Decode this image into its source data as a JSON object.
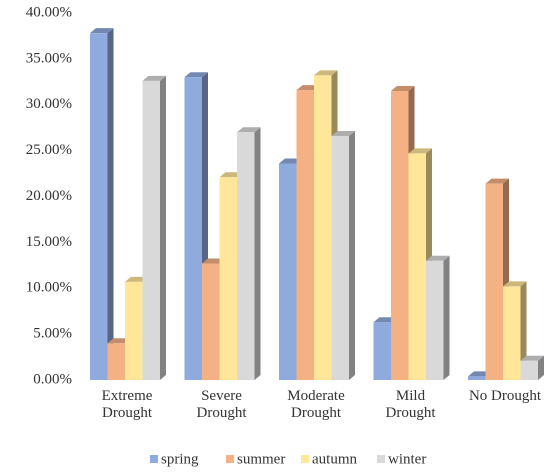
{
  "chart_data": {
    "type": "bar3d",
    "categories": [
      "Extreme Drought",
      "Severe Drought",
      "Moderate Drought",
      "Mild Drought",
      "No Drought"
    ],
    "series": [
      {
        "name": "spring",
        "color": "#8faadc",
        "values": [
          37.8,
          33.0,
          23.6,
          6.3,
          0.4
        ]
      },
      {
        "name": "summer",
        "color": "#f4b183",
        "values": [
          4.0,
          12.7,
          31.6,
          31.5,
          21.4
        ]
      },
      {
        "name": "autumn",
        "color": "#ffe699",
        "values": [
          10.7,
          22.1,
          33.2,
          24.7,
          10.2
        ]
      },
      {
        "name": "winter",
        "color": "#d9d9d9",
        "values": [
          32.6,
          27.0,
          26.6,
          13.0,
          2.1
        ]
      }
    ],
    "ylim": [
      0,
      40
    ],
    "yticks": [
      {
        "value": 0,
        "label": "0.00%"
      },
      {
        "value": 5,
        "label": "5.00%"
      },
      {
        "value": 10,
        "label": "10.00%"
      },
      {
        "value": 15,
        "label": "15.00%"
      },
      {
        "value": 20,
        "label": "20.00%"
      },
      {
        "value": 25,
        "label": "25.00%"
      },
      {
        "value": 30,
        "label": "30.00%"
      },
      {
        "value": 35,
        "label": "35.00%"
      },
      {
        "value": 40,
        "label": "40.00%"
      }
    ],
    "legend": "bottom"
  }
}
